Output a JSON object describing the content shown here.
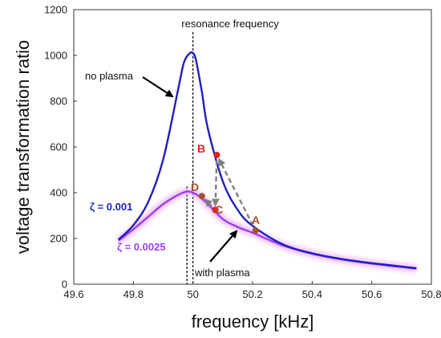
{
  "colors": {
    "no_plasma": "#1f1fbf",
    "with_plasma": "#9b3ff0",
    "point_red": "#e0201c",
    "point_brown": "#a0522d",
    "arrow_gray": "#808080",
    "glow": "#e7a3f2"
  },
  "chart_data": {
    "type": "line",
    "title": "",
    "xlabel": "frequency [kHz]",
    "ylabel": "voltage transformation ratio",
    "xlim": [
      49.6,
      50.8
    ],
    "ylim": [
      0,
      1200
    ],
    "xticks": [
      "49.6",
      "49.8",
      "50",
      "50.2",
      "50.4",
      "50.6",
      "50.8"
    ],
    "yticks": [
      "0",
      "200",
      "400",
      "600",
      "800",
      "1000",
      "1200"
    ],
    "grid": false,
    "series": [
      {
        "name": "no plasma",
        "zeta_label": "ζ = 0.001",
        "x": [
          49.75,
          49.8,
          49.85,
          49.9,
          49.95,
          49.97,
          49.99,
          50.0,
          50.01,
          50.03,
          50.05,
          50.1,
          50.15,
          50.2,
          50.3,
          50.4,
          50.5,
          50.6,
          50.75
        ],
        "y": [
          195,
          258,
          360,
          545,
          850,
          970,
          1010,
          1010,
          980,
          840,
          680,
          450,
          325,
          255,
          175,
          135,
          110,
          92,
          70
        ]
      },
      {
        "name": "with plasma",
        "zeta_label": "ζ = 0.0025",
        "x": [
          49.75,
          49.8,
          49.85,
          49.9,
          49.95,
          49.98,
          50.0,
          50.02,
          50.05,
          50.1,
          50.15,
          50.2,
          50.3,
          50.4,
          50.5,
          50.6,
          50.75
        ],
        "y": [
          190,
          240,
          295,
          350,
          390,
          405,
          400,
          385,
          350,
          285,
          250,
          225,
          170,
          133,
          108,
          90,
          68
        ]
      }
    ],
    "points": [
      {
        "label": "A",
        "x": 50.21,
        "y": 235
      },
      {
        "label": "B",
        "x": 50.08,
        "y": 565
      },
      {
        "label": "C",
        "x": 50.075,
        "y": 325
      },
      {
        "label": "D",
        "x": 50.03,
        "y": 385
      }
    ],
    "reference_lines": [
      {
        "x": 50.0,
        "label": "resonance frequency"
      },
      {
        "x": 49.98,
        "label": ""
      }
    ],
    "annotations": [
      {
        "text": "no plasma"
      },
      {
        "text": "with plasma"
      }
    ]
  }
}
